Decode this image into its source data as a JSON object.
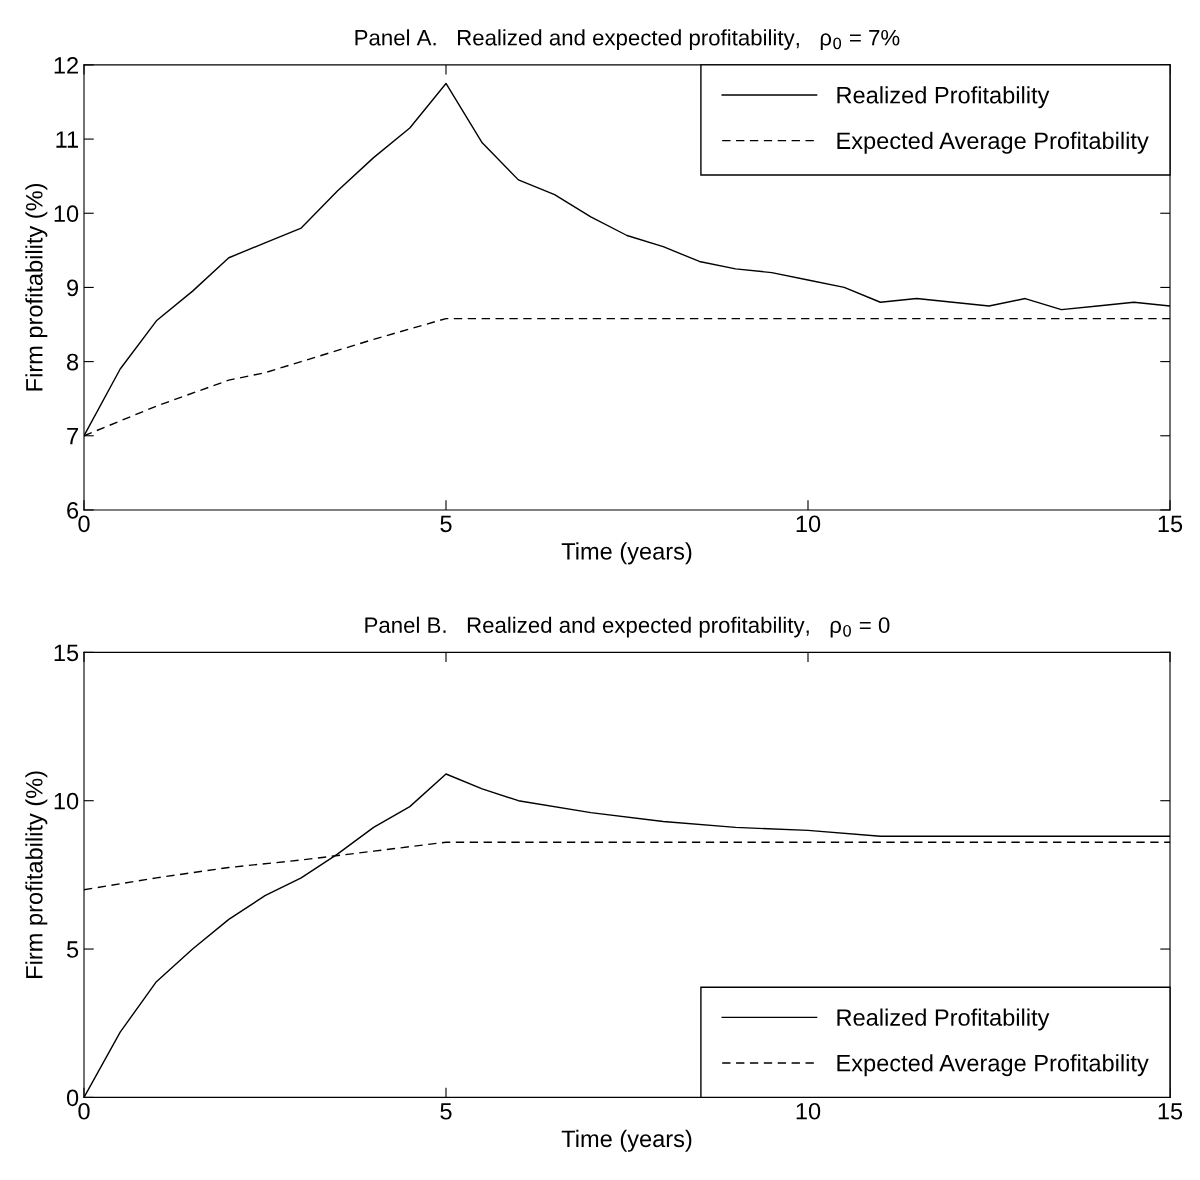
{
  "chart_data": [
    {
      "type": "line",
      "title": "Panel A.   Realized and expected profitability,   ρ$_{0}$ = 7%",
      "xlabel": "Time (years)",
      "ylabel": "Firm profitability (%)",
      "xlim": [
        0,
        15
      ],
      "xticks": [
        0,
        5,
        10,
        15
      ],
      "ylim": [
        6,
        12
      ],
      "yticks": [
        6,
        7,
        8,
        9,
        10,
        11,
        12
      ],
      "grid": false,
      "legend": "top right",
      "series": [
        {
          "name": "Realized Profitability",
          "color": "#000000",
          "line_style": "solid",
          "x": [
            0,
            0.5,
            1,
            1.5,
            2,
            2.5,
            3,
            3.5,
            4,
            4.5,
            5,
            5.5,
            6,
            6.5,
            7,
            7.5,
            8,
            8.5,
            9,
            9.5,
            10,
            10.5,
            11,
            11.5,
            12,
            12.5,
            13,
            13.5,
            14,
            14.5,
            15
          ],
          "values": [
            7.0,
            7.9,
            8.55,
            8.95,
            9.4,
            9.6,
            9.8,
            10.3,
            10.75,
            11.15,
            11.75,
            10.95,
            10.45,
            10.25,
            9.95,
            9.7,
            9.55,
            9.35,
            9.25,
            9.2,
            9.1,
            9.0,
            8.8,
            8.85,
            8.8,
            8.75,
            8.85,
            8.7,
            8.75,
            8.8,
            8.75
          ]
        },
        {
          "name": "Expected Average Profitability",
          "color": "#000000",
          "line_style": "dashed",
          "x": [
            0,
            1,
            2,
            2.5,
            3,
            4,
            5,
            15
          ],
          "values": [
            7.0,
            7.4,
            7.75,
            7.85,
            8.0,
            8.3,
            8.58,
            8.58
          ]
        }
      ]
    },
    {
      "type": "line",
      "title": "Panel B.   Realized and expected profitability,   ρ$_{0}$ = 0",
      "xlabel": "Time (years)",
      "ylabel": "Firm profitability (%)",
      "xlim": [
        0,
        15
      ],
      "xticks": [
        0,
        5,
        10,
        15
      ],
      "ylim": [
        0,
        15
      ],
      "yticks": [
        0,
        5,
        10,
        15
      ],
      "grid": false,
      "legend": "bottom right",
      "series": [
        {
          "name": "Realized Profitability",
          "color": "#000000",
          "line_style": "solid",
          "x": [
            0,
            0.5,
            1,
            1.5,
            2,
            2.5,
            3,
            3.5,
            4,
            4.5,
            5,
            5.5,
            6,
            7,
            8,
            9,
            10,
            11,
            12,
            13,
            14,
            15
          ],
          "values": [
            0,
            2.2,
            3.9,
            5.0,
            6.0,
            6.8,
            7.4,
            8.2,
            9.1,
            9.8,
            10.9,
            10.4,
            10.0,
            9.6,
            9.3,
            9.1,
            9.0,
            8.8,
            8.8,
            8.8,
            8.8,
            8.8
          ]
        },
        {
          "name": "Expected Average Profitability",
          "color": "#000000",
          "line_style": "dashed",
          "x": [
            0,
            1,
            2,
            3,
            4,
            5,
            15
          ],
          "values": [
            7.0,
            7.4,
            7.75,
            8.0,
            8.3,
            8.6,
            8.6
          ]
        }
      ]
    }
  ]
}
